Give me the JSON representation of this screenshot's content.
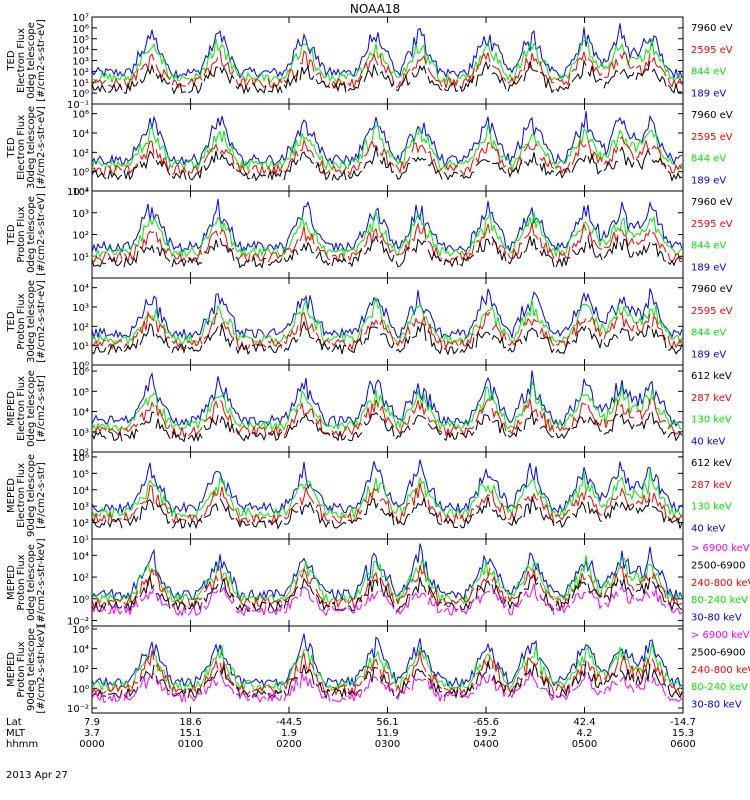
{
  "title": "NOAA18",
  "date_label": "2013 Apr 27",
  "colors": {
    "black": "#000000",
    "red": "#ff0000",
    "green": "#00ee00",
    "blue": "#0000ff",
    "magenta": "#ff00ff"
  },
  "footer": {
    "rows": [
      {
        "name": "Lat",
        "values": [
          "7.9",
          "18.6",
          "-44.5",
          "56.1",
          "-65.6",
          "42.4",
          "-14.7"
        ]
      },
      {
        "name": "MLT",
        "values": [
          "3.7",
          "15.1",
          "1.9",
          "11.9",
          "19.2",
          "4.2",
          "15.3"
        ]
      },
      {
        "name": "hhmm",
        "values": [
          "0000",
          "0100",
          "0200",
          "0300",
          "0400",
          "0500",
          "0600"
        ]
      }
    ]
  },
  "chart_data": {
    "type": "line",
    "x_axis": {
      "label": "hhmm",
      "ticks": [
        "0000",
        "0100",
        "0200",
        "0300",
        "0400",
        "0500",
        "0600"
      ],
      "range": [
        "0000",
        "0600"
      ]
    },
    "y_scale": "log",
    "grid": false,
    "legend_placement": "right",
    "panels": [
      {
        "ylabel": [
          "TED",
          "Electron Flux",
          "0deg telescope",
          "[#/cm2-s-str-eV]"
        ],
        "y_ticks": [
          "10^-1",
          "10^0",
          "10^1",
          "10^2",
          "10^3",
          "10^4",
          "10^5",
          "10^6",
          "10^7"
        ],
        "ylim_exp": [
          -1,
          7
        ],
        "series": [
          {
            "name": "7960 eV",
            "color": "black"
          },
          {
            "name": "2595 eV",
            "color": "red"
          },
          {
            "name": "844 eV",
            "color": "green"
          },
          {
            "name": "189 eV",
            "color": "blue"
          }
        ]
      },
      {
        "ylabel": [
          "TED",
          "Electron Flux",
          "30deg telescope",
          "[#/cm2-s-str-eV]"
        ],
        "y_ticks": [
          "10^-2",
          "10^0",
          "10^2",
          "10^4",
          "10^6"
        ],
        "ylim_exp": [
          -2,
          7
        ],
        "series": [
          {
            "name": "7960 eV",
            "color": "black"
          },
          {
            "name": "2595 eV",
            "color": "red"
          },
          {
            "name": "844 eV",
            "color": "green"
          },
          {
            "name": "189 eV",
            "color": "blue"
          }
        ]
      },
      {
        "ylabel": [
          "TED",
          "Proton Flux",
          "0deg telescope",
          "[#/cm2-s-str-eV]"
        ],
        "y_ticks": [
          "10^1",
          "10^2",
          "10^3",
          "10^4"
        ],
        "ylim_exp": [
          0,
          4
        ],
        "series": [
          {
            "name": "7960 eV",
            "color": "black"
          },
          {
            "name": "2595 eV",
            "color": "red"
          },
          {
            "name": "844 eV",
            "color": "green"
          },
          {
            "name": "189 eV",
            "color": "blue"
          }
        ]
      },
      {
        "ylabel": [
          "TED",
          "Proton Flux",
          "30deg telescope",
          "[#/cm2-s-str-eV]"
        ],
        "y_ticks": [
          "10^0",
          "10^1",
          "10^2",
          "10^3",
          "10^4"
        ],
        "ylim_exp": [
          0,
          4.5
        ],
        "series": [
          {
            "name": "7960 eV",
            "color": "black"
          },
          {
            "name": "2595 eV",
            "color": "red"
          },
          {
            "name": "844 eV",
            "color": "green"
          },
          {
            "name": "189 eV",
            "color": "blue"
          }
        ]
      },
      {
        "ylabel": [
          "MEPED",
          "Electron Flux",
          "0deg telescope",
          "[#/cm2-s-str]"
        ],
        "y_ticks": [
          "10^2",
          "10^3",
          "10^4",
          "10^5",
          "10^6"
        ],
        "ylim_exp": [
          2,
          6.3
        ],
        "series": [
          {
            "name": "612 keV",
            "color": "black"
          },
          {
            "name": "287 keV",
            "color": "red"
          },
          {
            "name": "130 keV",
            "color": "green"
          },
          {
            "name": "40 keV",
            "color": "blue"
          }
        ]
      },
      {
        "ylabel": [
          "MEPED",
          "Electron Flux",
          "90deg telescope",
          "[#/cm2-s-str]"
        ],
        "y_ticks": [
          "10^1",
          "10^2",
          "10^3",
          "10^4",
          "10^5",
          "10^6"
        ],
        "ylim_exp": [
          1,
          6.3
        ],
        "series": [
          {
            "name": "612 keV",
            "color": "black"
          },
          {
            "name": "287 keV",
            "color": "red"
          },
          {
            "name": "130 keV",
            "color": "green"
          },
          {
            "name": "40 keV",
            "color": "blue"
          }
        ]
      },
      {
        "ylabel": [
          "MEPED",
          "Proton Flux",
          "0deg telescope",
          "[#/cm2-s-str-keV]"
        ],
        "y_ticks": [
          "10^-2",
          "10^0",
          "10^2",
          "10^4"
        ],
        "ylim_exp": [
          -2.5,
          5.5
        ],
        "series": [
          {
            "name": "> 6900 keV",
            "color": "magenta"
          },
          {
            "name": "2500-6900",
            "color": "black"
          },
          {
            "name": "240-800 keV",
            "color": "red"
          },
          {
            "name": "80-240 keV",
            "color": "green"
          },
          {
            "name": "30-80 keV",
            "color": "blue"
          }
        ]
      },
      {
        "ylabel": [
          "MEPED",
          "Proton Flux",
          "90deg telescope",
          "[#/cm2-s-str-keV]"
        ],
        "y_ticks": [
          "10^-2",
          "10^0",
          "10^2",
          "10^4",
          "10^6"
        ],
        "ylim_exp": [
          -2.5,
          6.3
        ],
        "series": [
          {
            "name": "> 6900 keV",
            "color": "magenta"
          },
          {
            "name": "2500-6900",
            "color": "black"
          },
          {
            "name": "240-800 keV",
            "color": "red"
          },
          {
            "name": "80-240 keV",
            "color": "green"
          },
          {
            "name": "30-80 keV",
            "color": "blue"
          }
        ]
      }
    ]
  }
}
